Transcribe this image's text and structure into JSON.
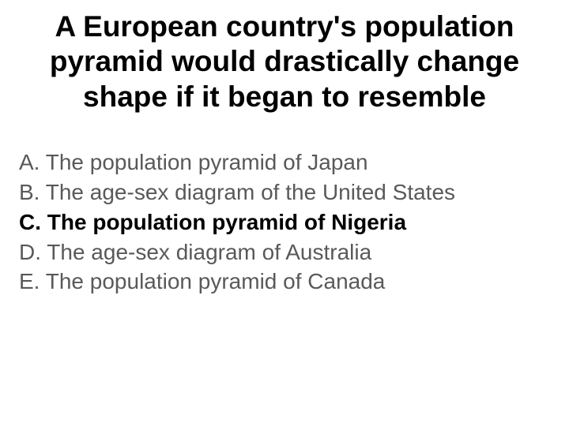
{
  "question": {
    "text": "A European country's population pyramid would drastically change shape if it began to resemble",
    "fontsize": 37,
    "color": "#000000",
    "weight": "bold"
  },
  "options": [
    {
      "letter": "A.",
      "text": "The population pyramid of Japan",
      "correct": false
    },
    {
      "letter": "B.",
      "text": "The age-sex diagram of the United States",
      "correct": false
    },
    {
      "letter": "C.",
      "text": "The population pyramid of Nigeria",
      "correct": true
    },
    {
      "letter": "D.",
      "text": "The age-sex diagram of Australia",
      "correct": false
    },
    {
      "letter": "E.",
      "text": "The population pyramid of Canada",
      "correct": false
    }
  ],
  "styles": {
    "background_color": "#ffffff",
    "option_color": "#595959",
    "correct_color": "#000000",
    "option_fontsize": 28
  }
}
